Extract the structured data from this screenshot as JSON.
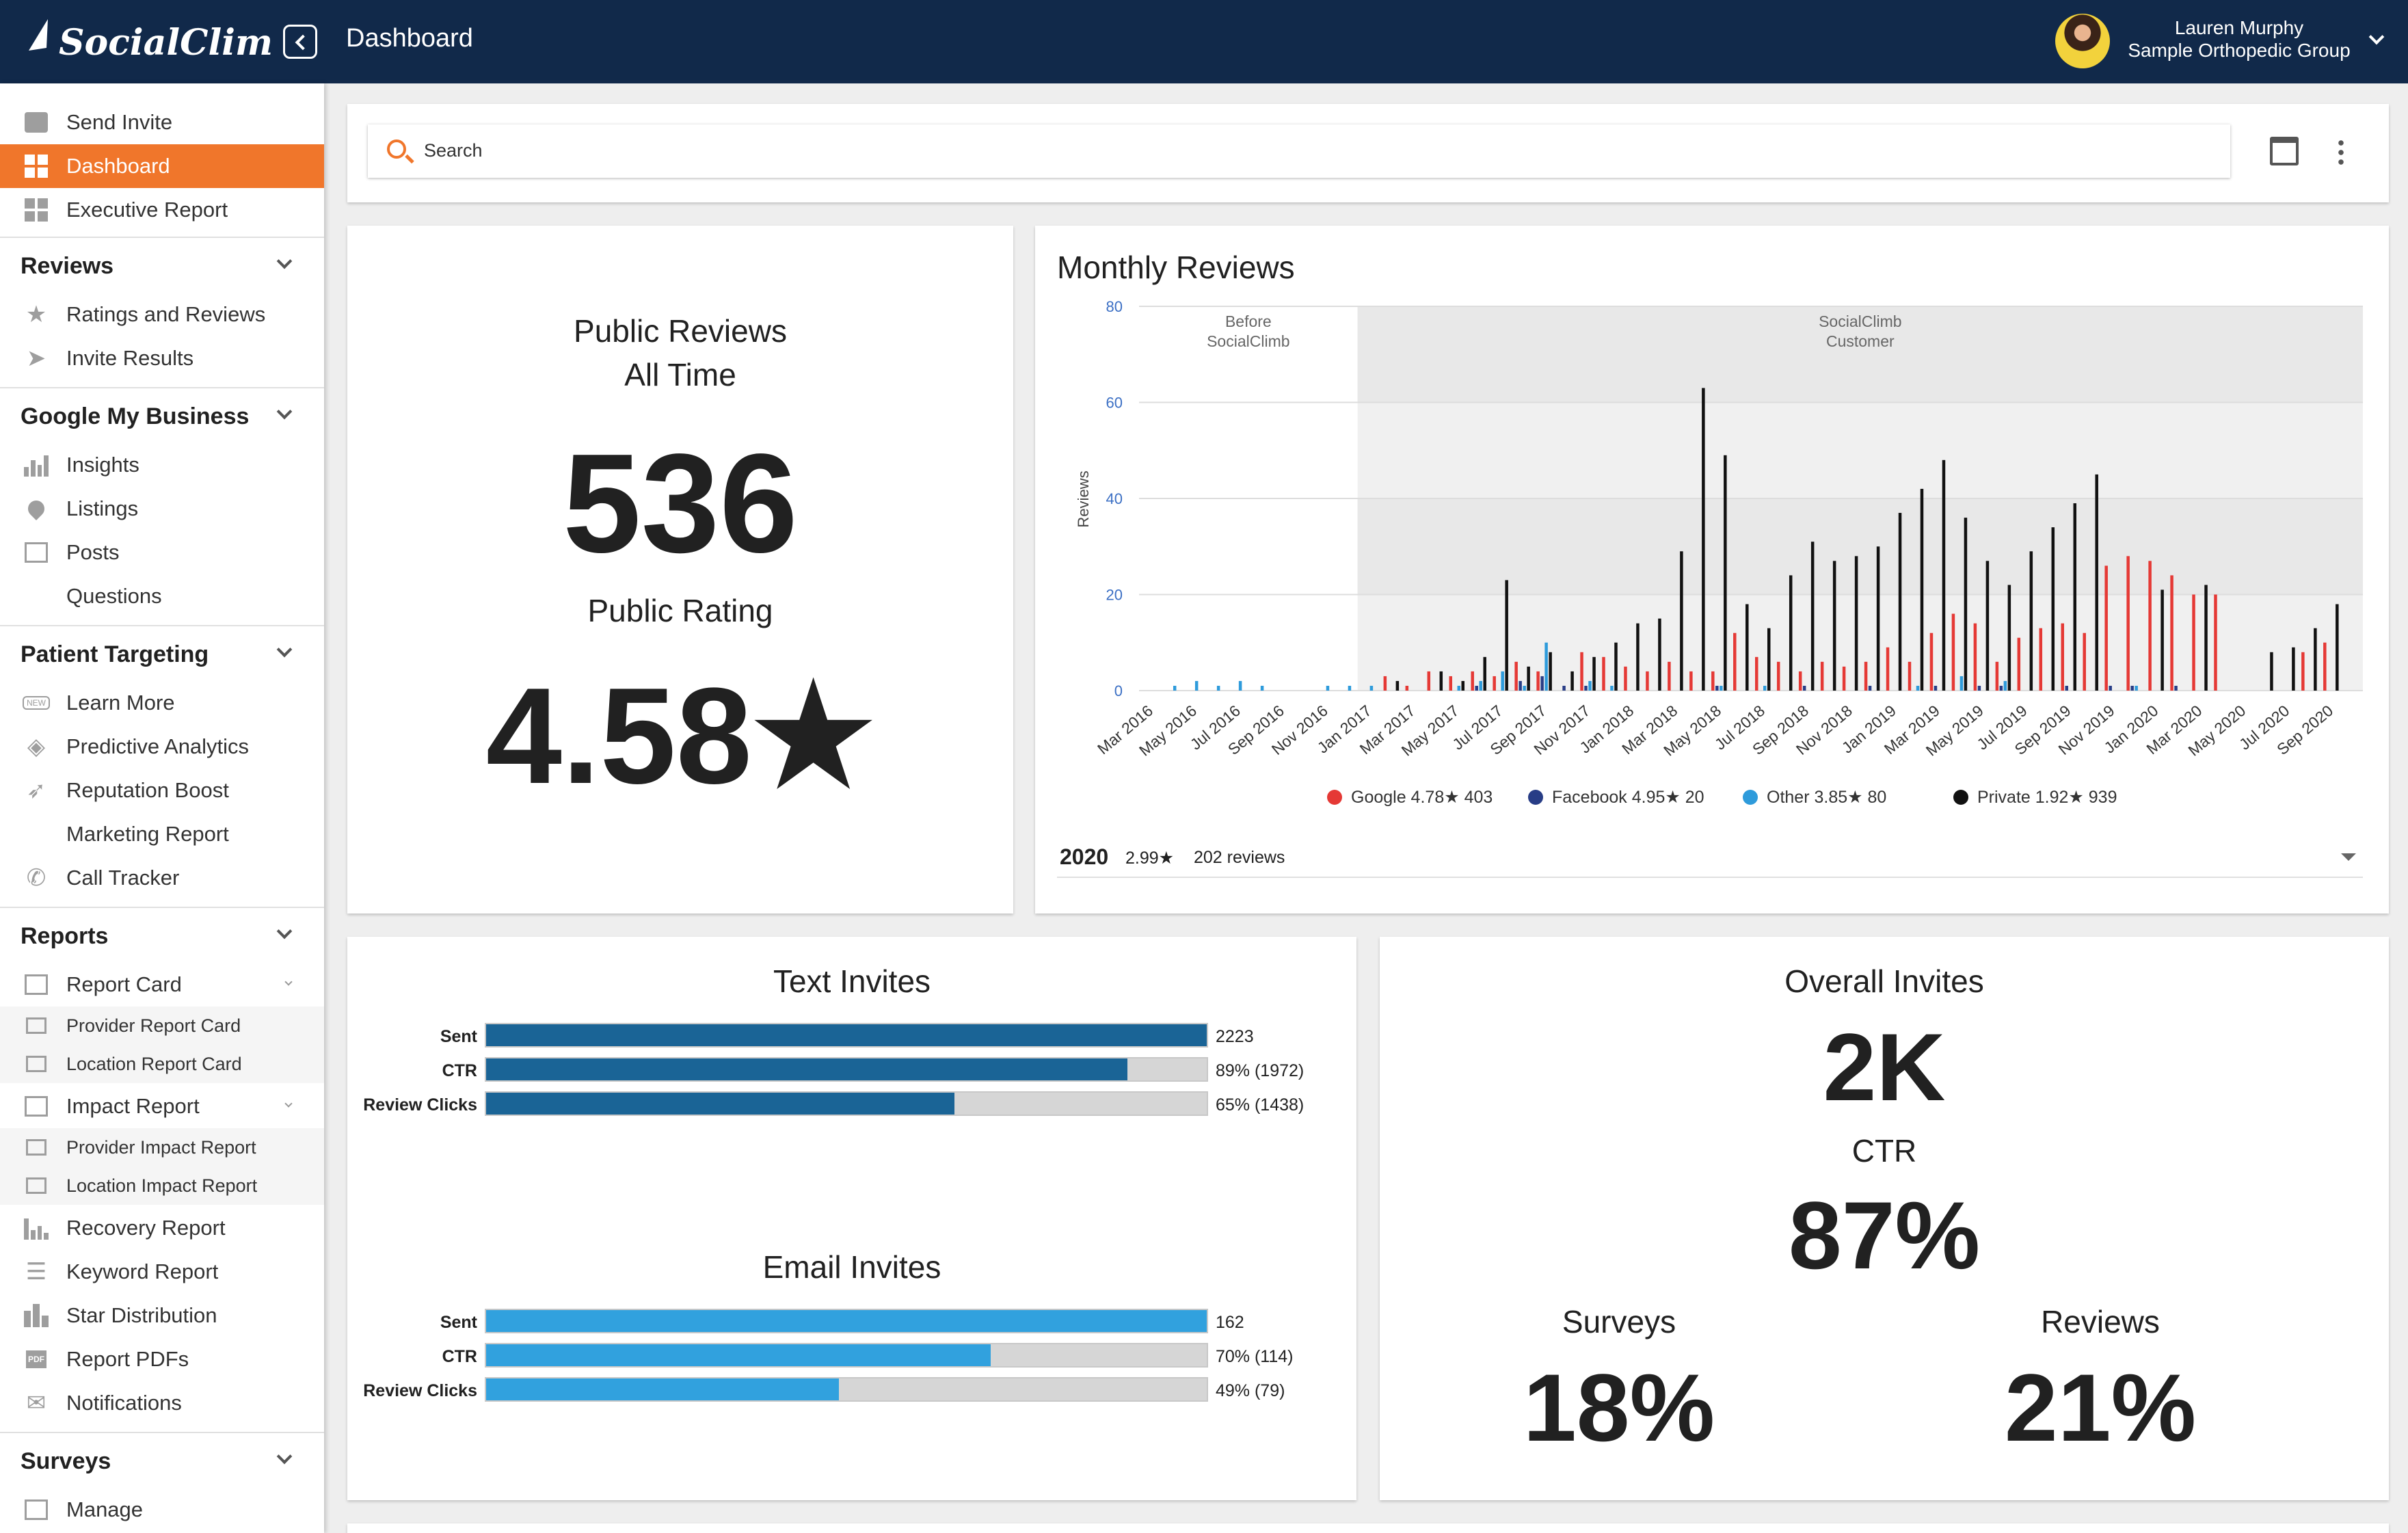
{
  "header": {
    "brand": "SocialClimb",
    "page_title": "Dashboard",
    "user_name": "Lauren Murphy",
    "org_name": "Sample Orthopedic Group"
  },
  "sidebar": {
    "top_items": [
      {
        "label": "Send Invite",
        "icon": "chat-icon"
      },
      {
        "label": "Dashboard",
        "icon": "dashboard-icon",
        "active": true
      },
      {
        "label": "Executive Report",
        "icon": "grid-icon"
      }
    ],
    "sections": {
      "reviews": {
        "title": "Reviews",
        "items": [
          "Ratings and Reviews",
          "Invite Results"
        ]
      },
      "gmb": {
        "title": "Google My Business",
        "items": [
          "Insights",
          "Listings",
          "Posts",
          "Questions"
        ]
      },
      "targeting": {
        "title": "Patient Targeting",
        "items": [
          "Learn More",
          "Predictive Analytics",
          "Reputation Boost",
          "Marketing Report",
          "Call Tracker"
        ]
      },
      "reports": {
        "title": "Reports",
        "items": [
          "Report Card",
          "Provider Report Card",
          "Location Report Card",
          "Impact Report",
          "Provider Impact Report",
          "Location Impact Report",
          "Recovery Report",
          "Keyword Report",
          "Star Distribution",
          "Report PDFs",
          "Notifications"
        ]
      },
      "surveys": {
        "title": "Surveys",
        "items": [
          "Manage"
        ]
      }
    },
    "badges": {
      "new": "NEW",
      "pdf": "PDF"
    }
  },
  "search": {
    "placeholder": "Search"
  },
  "public_reviews": {
    "title": "Public Reviews\nAll Time",
    "count": "536",
    "rating_label": "Public Rating",
    "rating": "4.58★"
  },
  "monthly_reviews": {
    "title": "Monthly Reviews",
    "footer_year": "2020",
    "footer_rating": "2.99★",
    "footer_reviews": "202 reviews"
  },
  "chart_data": {
    "type": "bar",
    "title": "Monthly Reviews",
    "ylabel": "Reviews",
    "ylim": [
      0,
      80
    ],
    "yticks": [
      "0",
      "20",
      "40",
      "60",
      "80"
    ],
    "regions": [
      {
        "label": "Before\nSocialClimb",
        "from": "Mar 2016",
        "to": "Dec 2016"
      },
      {
        "label": "SocialClimb\nCustomer",
        "from": "Jan 2017",
        "to": "Oct 2020"
      }
    ],
    "categories": [
      "Mar 2016",
      "Apr 2016",
      "May 2016",
      "Jun 2016",
      "Jul 2016",
      "Aug 2016",
      "Sep 2016",
      "Oct 2016",
      "Nov 2016",
      "Dec 2016",
      "Jan 2017",
      "Feb 2017",
      "Mar 2017",
      "Apr 2017",
      "May 2017",
      "Jun 2017",
      "Jul 2017",
      "Aug 2017",
      "Sep 2017",
      "Oct 2017",
      "Nov 2017",
      "Dec 2017",
      "Jan 2018",
      "Feb 2018",
      "Mar 2018",
      "Apr 2018",
      "May 2018",
      "Jun 2018",
      "Jul 2018",
      "Aug 2018",
      "Sep 2018",
      "Oct 2018",
      "Nov 2018",
      "Dec 2018",
      "Jan 2019",
      "Feb 2019",
      "Mar 2019",
      "Apr 2019",
      "May 2019",
      "Jun 2019",
      "Jul 2019",
      "Aug 2019",
      "Sep 2019",
      "Oct 2019",
      "Nov 2019",
      "Dec 2019",
      "Jan 2020",
      "Feb 2020",
      "Mar 2020",
      "Apr 2020",
      "May 2020",
      "Jun 2020",
      "Jul 2020",
      "Aug 2020",
      "Sep 2020",
      "Oct 2020"
    ],
    "tick_labels": [
      "Mar 2016",
      "May 2016",
      "Jul 2016",
      "Sep 2016",
      "Nov 2016",
      "Jan 2017",
      "Mar 2017",
      "May 2017",
      "Jul 2017",
      "Sep 2017",
      "Nov 2017",
      "Jan 2018",
      "Mar 2018",
      "May 2018",
      "Jul 2018",
      "Sep 2018",
      "Nov 2018",
      "Jan 2019",
      "Mar 2019",
      "May 2019",
      "Jul 2019",
      "Sep 2019",
      "Nov 2019",
      "Jan 2020",
      "Mar 2020",
      "May 2020",
      "Jul 2020",
      "Sep 2020"
    ],
    "series": [
      {
        "name": "Google",
        "legend": "Google 4.78★ 403",
        "color": "#e53935",
        "values": [
          0,
          0,
          0,
          0,
          0,
          0,
          0,
          0,
          0,
          0,
          0,
          3,
          1,
          4,
          3,
          4,
          3,
          6,
          4,
          0,
          8,
          7,
          5,
          4,
          6,
          4,
          4,
          12,
          7,
          6,
          4,
          6,
          5,
          6,
          9,
          6,
          12,
          16,
          14,
          6,
          11,
          13,
          14,
          12,
          26,
          28,
          27,
          24,
          20,
          20,
          0,
          0,
          0,
          8,
          10,
          0
        ]
      },
      {
        "name": "Facebook",
        "legend": "Facebook 4.95★ 20",
        "color": "#283d86",
        "values": [
          0,
          0,
          0,
          0,
          0,
          0,
          0,
          0,
          0,
          0,
          0,
          0,
          0,
          0,
          0,
          1,
          0,
          2,
          3,
          1,
          1,
          0,
          0,
          0,
          0,
          0,
          1,
          0,
          0,
          0,
          1,
          0,
          0,
          1,
          0,
          0,
          1,
          0,
          1,
          1,
          0,
          0,
          1,
          0,
          1,
          1,
          0,
          1,
          0,
          0,
          0,
          0,
          0,
          0,
          0,
          0
        ]
      },
      {
        "name": "Other",
        "legend": "Other 3.85★ 80",
        "color": "#2e9bdb",
        "values": [
          0,
          1,
          2,
          1,
          2,
          1,
          0,
          0,
          1,
          1,
          1,
          0,
          0,
          0,
          1,
          2,
          4,
          1,
          10,
          0,
          2,
          1,
          0,
          0,
          0,
          0,
          1,
          0,
          1,
          0,
          0,
          0,
          0,
          0,
          0,
          1,
          0,
          3,
          0,
          2,
          0,
          0,
          0,
          0,
          0,
          1,
          0,
          0,
          0,
          0,
          0,
          0,
          0,
          0,
          0,
          0
        ]
      },
      {
        "name": "Private",
        "legend": "Private 1.92★ 939",
        "color": "#111111",
        "values": [
          0,
          0,
          0,
          0,
          0,
          0,
          0,
          0,
          0,
          0,
          0,
          2,
          0,
          4,
          2,
          7,
          23,
          5,
          8,
          4,
          7,
          10,
          14,
          15,
          29,
          63,
          49,
          18,
          13,
          24,
          31,
          27,
          28,
          30,
          37,
          42,
          48,
          36,
          27,
          22,
          29,
          34,
          39,
          45,
          0,
          0,
          21,
          0,
          22,
          0,
          0,
          8,
          9,
          13,
          18,
          0
        ]
      }
    ],
    "legend_position": "bottom"
  },
  "text_invites": {
    "title": "Text Invites",
    "color": "#1a6496",
    "rows": [
      {
        "label": "Sent",
        "value": "2223",
        "fraction": 1.0
      },
      {
        "label": "CTR",
        "value": "89% (1972)",
        "fraction": 0.89
      },
      {
        "label": "Review Clicks",
        "value": "65% (1438)",
        "fraction": 0.65
      }
    ]
  },
  "email_invites": {
    "title": "Email Invites",
    "color": "#31a1de",
    "rows": [
      {
        "label": "Sent",
        "value": "162",
        "fraction": 1.0
      },
      {
        "label": "CTR",
        "value": "70% (114)",
        "fraction": 0.7
      },
      {
        "label": "Review Clicks",
        "value": "49% (79)",
        "fraction": 0.49
      }
    ]
  },
  "overall_invites": {
    "title": "Overall Invites",
    "count": "2K",
    "ctr_label": "CTR",
    "ctr": "87%",
    "surveys_label": "Surveys",
    "surveys": "18%",
    "reviews_label": "Reviews",
    "reviews": "21%"
  },
  "colors": {
    "header_bg": "#11294a",
    "accent": "#f0762b"
  }
}
